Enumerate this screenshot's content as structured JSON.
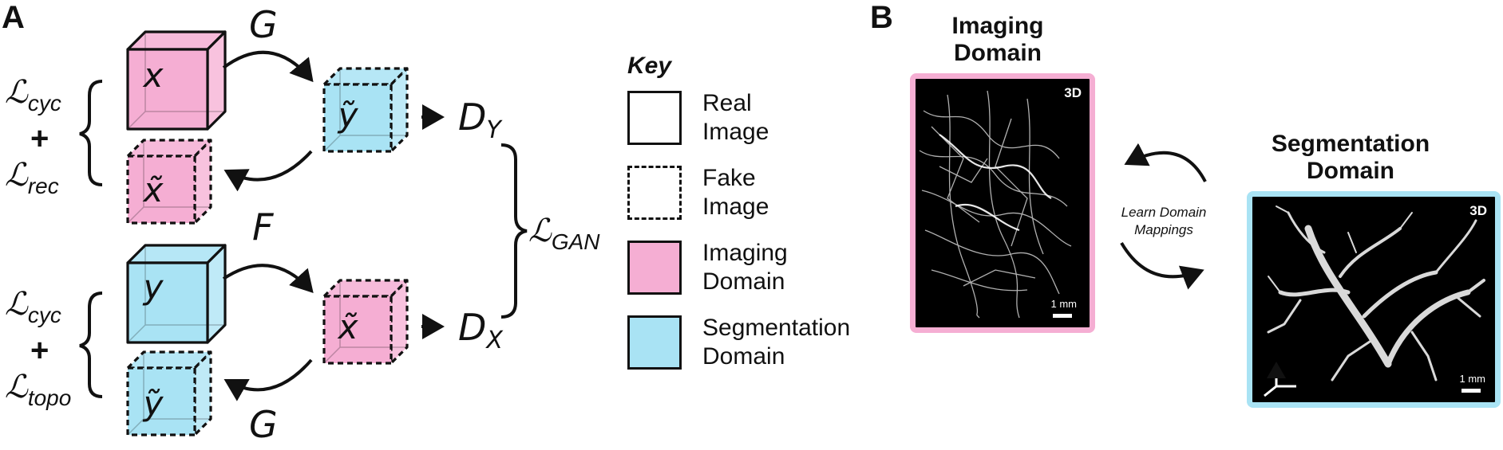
{
  "panel_a": {
    "letter": "A",
    "generator_top": "G",
    "generator_mid": "F",
    "generator_bottom": "G",
    "cubes": {
      "x_real": "x",
      "y_fake": "ỹ",
      "x_rec": "x̃",
      "y_real": "y",
      "x_fake": "x̃",
      "y_rec": "ỹ"
    },
    "losses": {
      "cyc_symbol": "ℒ",
      "cyc_sub": "cyc",
      "rec_symbol": "ℒ",
      "rec_sub": "rec",
      "topo_symbol": "ℒ",
      "topo_sub": "topo",
      "gan_symbol": "ℒ",
      "gan_sub": "GAN",
      "plus": "+"
    },
    "discriminators": {
      "dy": "D",
      "dy_sub": "Y",
      "dx": "D",
      "dx_sub": "X"
    },
    "key": {
      "title": "Key",
      "items": [
        {
          "label": "Real\nImage",
          "style": "solid",
          "color": "#ffffff"
        },
        {
          "label": "Fake\nImage",
          "style": "dashed",
          "color": "#ffffff"
        },
        {
          "label": "Imaging\nDomain",
          "style": "solid",
          "color": "#f5aed3"
        },
        {
          "label": "Segmentation\nDomain",
          "style": "solid",
          "color": "#a9e3f4"
        }
      ]
    }
  },
  "panel_b": {
    "letter": "B",
    "imaging_title": "Imaging\nDomain",
    "segmentation_title": "Segmentation\nDomain",
    "mapping_label": "Learn Domain\nMappings",
    "tag_3d": "3D",
    "scale_label": "1 mm"
  },
  "colors": {
    "imaging": "#f5aed3",
    "imaging_border": "#f5aed3",
    "segmentation": "#a9e3f4",
    "segmentation_border": "#a9e3f4",
    "ink": "#111111"
  }
}
